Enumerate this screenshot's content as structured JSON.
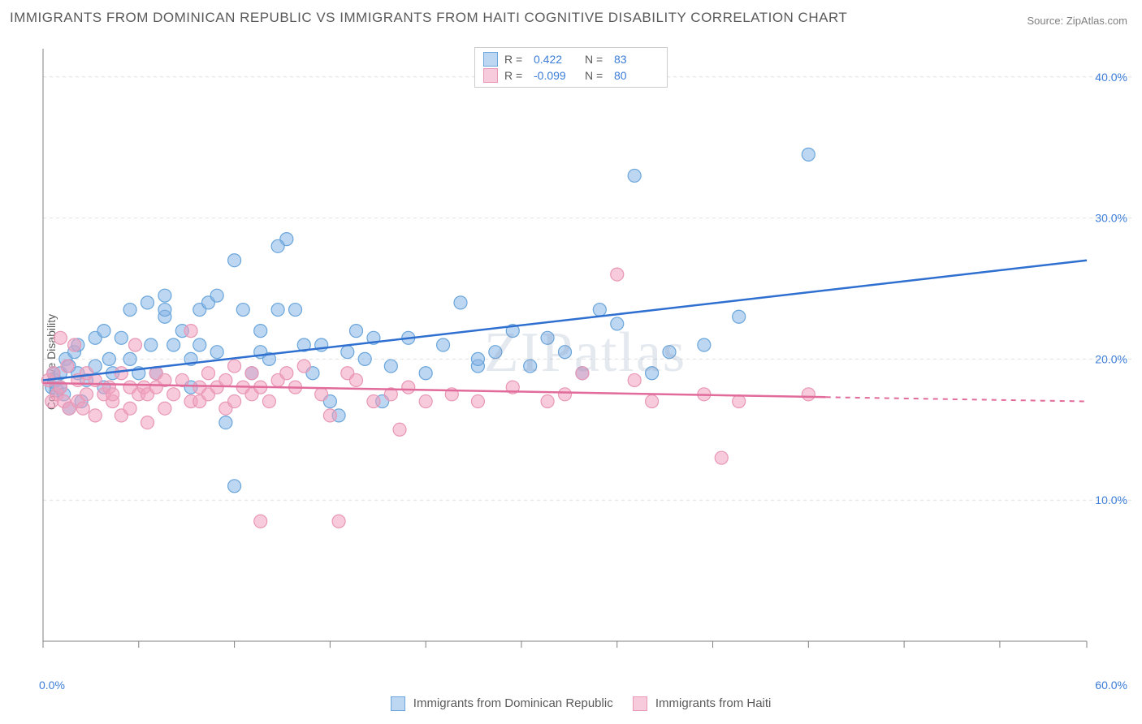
{
  "title": "IMMIGRANTS FROM DOMINICAN REPUBLIC VS IMMIGRANTS FROM HAITI COGNITIVE DISABILITY CORRELATION CHART",
  "source": "Source: ZipAtlas.com",
  "ylabel": "Cognitive Disability",
  "watermark": "ZIPatlas",
  "xaxis": {
    "min": 0,
    "max": 60,
    "label_left": "0.0%",
    "label_right": "60.0%",
    "tick_positions": [
      0,
      5.5,
      11,
      16.5,
      22,
      27.5,
      33,
      38.5,
      44,
      49.5,
      55,
      60
    ]
  },
  "yaxis": {
    "min": 0,
    "max": 42,
    "ticks": [
      10,
      20,
      30,
      40
    ],
    "tick_labels": [
      "10.0%",
      "20.0%",
      "30.0%",
      "40.0%"
    ]
  },
  "series": [
    {
      "name": "Immigrants from Dominican Republic",
      "color_fill": "rgba(135,180,230,0.55)",
      "color_stroke": "#6aa6db",
      "trend_color": "#2e6fd0",
      "trend_start": [
        0,
        18.5
      ],
      "trend_end": [
        60,
        27
      ],
      "R": "0.422",
      "N": "83",
      "points": [
        [
          0.5,
          18
        ],
        [
          0.6,
          19
        ],
        [
          0.7,
          18.5
        ],
        [
          0.8,
          17.8
        ],
        [
          1,
          19
        ],
        [
          1,
          18
        ],
        [
          1.2,
          17.5
        ],
        [
          1.3,
          20
        ],
        [
          1.5,
          16.5
        ],
        [
          1.5,
          19.5
        ],
        [
          1.8,
          20.5
        ],
        [
          2,
          19
        ],
        [
          2,
          21
        ],
        [
          2.2,
          17
        ],
        [
          2.5,
          18.5
        ],
        [
          3,
          21.5
        ],
        [
          3,
          19.5
        ],
        [
          3.5,
          18
        ],
        [
          3.8,
          20
        ],
        [
          3.5,
          22
        ],
        [
          4,
          19
        ],
        [
          4.5,
          21.5
        ],
        [
          5,
          20
        ],
        [
          5,
          23.5
        ],
        [
          5.5,
          19
        ],
        [
          6,
          24
        ],
        [
          6.2,
          21
        ],
        [
          6.5,
          19
        ],
        [
          7,
          23
        ],
        [
          7,
          23.5
        ],
        [
          7.5,
          21
        ],
        [
          7,
          24.5
        ],
        [
          8,
          22
        ],
        [
          8.5,
          20
        ],
        [
          8.5,
          18
        ],
        [
          9,
          23.5
        ],
        [
          9,
          21
        ],
        [
          9.5,
          24
        ],
        [
          10,
          24.5
        ],
        [
          10,
          20.5
        ],
        [
          10.5,
          15.5
        ],
        [
          11,
          27
        ],
        [
          11,
          11
        ],
        [
          11.5,
          23.5
        ],
        [
          12,
          19
        ],
        [
          12.5,
          22
        ],
        [
          12.5,
          20.5
        ],
        [
          13,
          20
        ],
        [
          13.5,
          23.5
        ],
        [
          14,
          28.5
        ],
        [
          14.5,
          23.5
        ],
        [
          15,
          21
        ],
        [
          13.5,
          28
        ],
        [
          15.5,
          19
        ],
        [
          16,
          21
        ],
        [
          16.5,
          17
        ],
        [
          17,
          16
        ],
        [
          17.5,
          20.5
        ],
        [
          18,
          22
        ],
        [
          18.5,
          20
        ],
        [
          19,
          21.5
        ],
        [
          19.5,
          17
        ],
        [
          20,
          19.5
        ],
        [
          21,
          21.5
        ],
        [
          22,
          19
        ],
        [
          23,
          21
        ],
        [
          24,
          24
        ],
        [
          25,
          19.5
        ],
        [
          25,
          20
        ],
        [
          26,
          20.5
        ],
        [
          27,
          22
        ],
        [
          28,
          19.5
        ],
        [
          29,
          21.5
        ],
        [
          30,
          20.5
        ],
        [
          31,
          19
        ],
        [
          32,
          23.5
        ],
        [
          33,
          22.5
        ],
        [
          34,
          33
        ],
        [
          35,
          19
        ],
        [
          38,
          21
        ],
        [
          40,
          23
        ],
        [
          44,
          34.5
        ],
        [
          36,
          20.5
        ]
      ]
    },
    {
      "name": "Immigrants from Haiti",
      "color_fill": "rgba(240,160,190,0.55)",
      "color_stroke": "#e897b5",
      "trend_color": "#e16b9a",
      "trend_start": [
        0,
        18.3
      ],
      "trend_end": [
        45,
        17.3
      ],
      "trend_dash_start": [
        45,
        17.3
      ],
      "trend_dash_end": [
        60,
        17.0
      ],
      "R": "-0.099",
      "N": "80",
      "points": [
        [
          0.3,
          18.5
        ],
        [
          0.5,
          17
        ],
        [
          0.6,
          19
        ],
        [
          0.8,
          17.5
        ],
        [
          1,
          18
        ],
        [
          1,
          21.5
        ],
        [
          1.2,
          17
        ],
        [
          1.4,
          19.5
        ],
        [
          1.5,
          16.5
        ],
        [
          1.8,
          21
        ],
        [
          2,
          18.5
        ],
        [
          2,
          17
        ],
        [
          2.3,
          16.5
        ],
        [
          2.5,
          17.5
        ],
        [
          2.5,
          19
        ],
        [
          3,
          16
        ],
        [
          3,
          18.5
        ],
        [
          3.5,
          17.5
        ],
        [
          3.8,
          18
        ],
        [
          4,
          17
        ],
        [
          4,
          17.5
        ],
        [
          4.5,
          16
        ],
        [
          4.5,
          19
        ],
        [
          5,
          18
        ],
        [
          5,
          16.5
        ],
        [
          5.3,
          21
        ],
        [
          5.5,
          17.5
        ],
        [
          5.8,
          18
        ],
        [
          6,
          17.5
        ],
        [
          6,
          15.5
        ],
        [
          6.5,
          18
        ],
        [
          6.5,
          19
        ],
        [
          7,
          18.5
        ],
        [
          7,
          16.5
        ],
        [
          7.5,
          17.5
        ],
        [
          8,
          18.5
        ],
        [
          8.5,
          17
        ],
        [
          8.5,
          22
        ],
        [
          9,
          18
        ],
        [
          9,
          17
        ],
        [
          9.5,
          19
        ],
        [
          9.5,
          17.5
        ],
        [
          10,
          18
        ],
        [
          10.5,
          16.5
        ],
        [
          10.5,
          18.5
        ],
        [
          11,
          17
        ],
        [
          11,
          19.5
        ],
        [
          11.5,
          18
        ],
        [
          12,
          17.5
        ],
        [
          12,
          19
        ],
        [
          12.5,
          18
        ],
        [
          12.5,
          8.5
        ],
        [
          13,
          17
        ],
        [
          13.5,
          18.5
        ],
        [
          14,
          19
        ],
        [
          14.5,
          18
        ],
        [
          15,
          19.5
        ],
        [
          16,
          17.5
        ],
        [
          16.5,
          16
        ],
        [
          17,
          8.5
        ],
        [
          17.5,
          19
        ],
        [
          18,
          18.5
        ],
        [
          19,
          17
        ],
        [
          20,
          17.5
        ],
        [
          20.5,
          15
        ],
        [
          21,
          18
        ],
        [
          22,
          17
        ],
        [
          23.5,
          17.5
        ],
        [
          25,
          17
        ],
        [
          27,
          18
        ],
        [
          29,
          17
        ],
        [
          30,
          17.5
        ],
        [
          31,
          19
        ],
        [
          33,
          26
        ],
        [
          35,
          17
        ],
        [
          34,
          18.5
        ],
        [
          38,
          17.5
        ],
        [
          39,
          13
        ],
        [
          40,
          17
        ],
        [
          44,
          17.5
        ]
      ]
    }
  ],
  "stats_legend": [
    {
      "swatch_fill": "rgba(135,180,230,0.55)",
      "swatch_stroke": "#6aa6db",
      "R": "0.422",
      "N": "83"
    },
    {
      "swatch_fill": "rgba(240,160,190,0.55)",
      "swatch_stroke": "#e897b5",
      "R": "-0.099",
      "N": "80"
    }
  ],
  "colors": {
    "grid": "#e0e0e0",
    "axis": "#808080",
    "tick_text": "#3b7dd8",
    "title_text": "#5a5a5a"
  }
}
